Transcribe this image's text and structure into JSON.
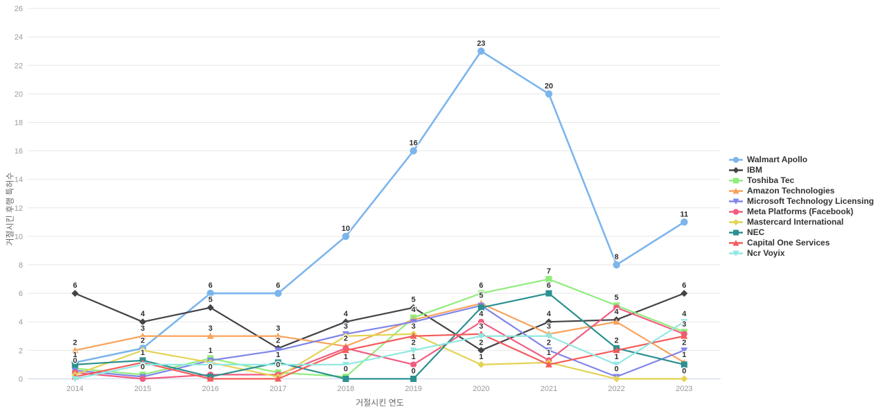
{
  "chart_data": {
    "type": "line",
    "title": "",
    "xlabel": "거절시킨 연도",
    "ylabel": "거절시킨 후행 특허수",
    "x": [
      2014,
      2015,
      2016,
      2017,
      2018,
      2019,
      2020,
      2021,
      2022,
      2023
    ],
    "ylim": [
      0,
      26
    ],
    "y_ticks": [
      0,
      2,
      4,
      6,
      8,
      10,
      12,
      14,
      16,
      18,
      20,
      22,
      24,
      26
    ],
    "grid": "horizontal",
    "legend_position": "right",
    "axis_line_color": "#ccd6eb",
    "grid_color": "#e6e6e6",
    "series": [
      {
        "name": "Walmart Apollo",
        "color": "#7cb5ec",
        "marker": "circle",
        "values": [
          1,
          2,
          6,
          6,
          10,
          16,
          23,
          20,
          8,
          11
        ]
      },
      {
        "name": "IBM",
        "color": "#434348",
        "marker": "diamond",
        "values": [
          6,
          4,
          5,
          2,
          4,
          5,
          2,
          4,
          4,
          6
        ]
      },
      {
        "name": "Toshiba Tec",
        "color": "#90ed7d",
        "marker": "square",
        "values": [
          0,
          0,
          1,
          0,
          0,
          4,
          6,
          7,
          5,
          3
        ]
      },
      {
        "name": "Amazon Technologies",
        "color": "#f7a35c",
        "marker": "triangle",
        "values": [
          2,
          3,
          3,
          3,
          2,
          4,
          5,
          3,
          4,
          1
        ]
      },
      {
        "name": "Microsoft Technology Licensing",
        "color": "#8085e9",
        "marker": "triangle-down",
        "values": [
          0,
          0,
          1,
          2,
          3,
          4,
          5,
          2,
          0,
          2
        ]
      },
      {
        "name": "Meta Platforms (Facebook)",
        "color": "#f15c80",
        "marker": "circle",
        "values": [
          0,
          0,
          0,
          0,
          2,
          1,
          4,
          1,
          5,
          3
        ]
      },
      {
        "name": "Mastercard International",
        "color": "#e4d354",
        "marker": "diamond",
        "values": [
          0,
          2,
          1,
          0,
          3,
          3,
          1,
          1,
          0,
          0
        ]
      },
      {
        "name": "NEC",
        "color": "#2b908f",
        "marker": "square",
        "values": [
          1,
          1,
          0,
          1,
          0,
          0,
          5,
          6,
          2,
          1
        ]
      },
      {
        "name": "Capital One Services",
        "color": "#f45b5b",
        "marker": "triangle",
        "values": [
          0,
          1,
          0,
          0,
          2,
          3,
          3,
          1,
          2,
          3
        ]
      },
      {
        "name": "Ncr Voyix",
        "color": "#91e8e1",
        "marker": "triangle-down",
        "values": [
          0,
          1,
          1,
          1,
          1,
          2,
          3,
          3,
          1,
          4
        ]
      }
    ]
  }
}
